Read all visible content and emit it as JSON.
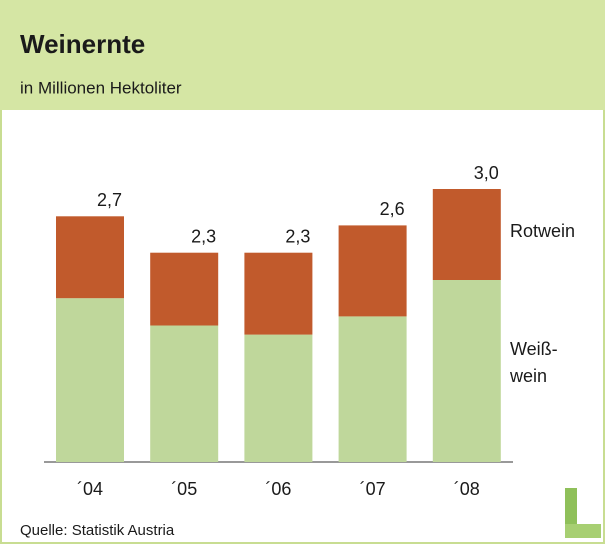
{
  "chart_data": {
    "type": "stacked_bar",
    "title": "Weinernte",
    "subtitle": "in Millionen Hektoliter",
    "source": "Quelle: Statistik Austria",
    "categories": [
      "´04",
      "´05",
      "´06",
      "´07",
      "´08"
    ],
    "series": [
      {
        "name": "Weiß-wein",
        "color": "#bfd79b",
        "values": [
          1.8,
          1.5,
          1.4,
          1.6,
          2.0
        ]
      },
      {
        "name": "Rotwein",
        "color": "#c15a2c",
        "values": [
          0.9,
          0.8,
          0.9,
          1.0,
          1.0
        ]
      }
    ],
    "totals": [
      2.7,
      2.3,
      2.3,
      2.6,
      3.0
    ],
    "total_labels": [
      "2,7",
      "2,3",
      "2,3",
      "2,6",
      "3,0"
    ]
  }
}
